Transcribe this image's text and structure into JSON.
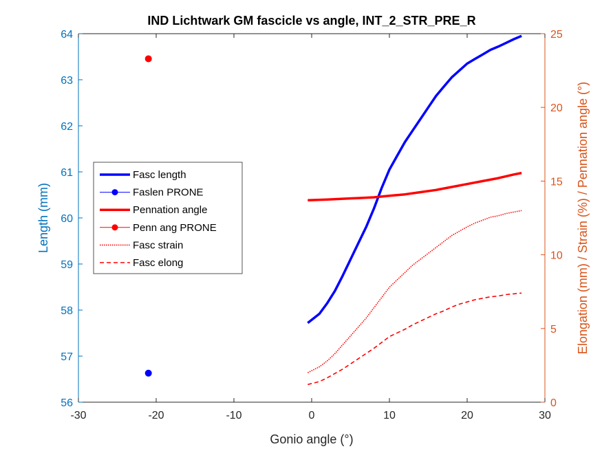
{
  "chart_data": {
    "type": "line",
    "title": "IND Lichtwark GM fascicle vs angle, INT_2_STR_PRE_R",
    "xlabel": "Gonio angle (°)",
    "ylabel_left": "Length (mm)",
    "ylabel_right": "Elongation (mm) / Strain (%) / Pennation angle (°)",
    "xlim": [
      -30,
      30
    ],
    "ylim_left": [
      56,
      64
    ],
    "ylim_right": [
      0,
      25
    ],
    "x_ticks": [
      -30,
      -20,
      -10,
      0,
      10,
      20,
      30
    ],
    "y_left_ticks": [
      56,
      57,
      58,
      59,
      60,
      61,
      62,
      63,
      64
    ],
    "y_right_ticks": [
      0,
      5,
      10,
      15,
      20,
      25
    ],
    "colors": {
      "left_axis": "#0072BD",
      "right_axis": "#D95319",
      "blue": "#0000FF",
      "red": "#FF0000"
    },
    "legend_position": "left-center",
    "series": [
      {
        "name": "Fasc length",
        "axis": "left",
        "style": "solid-thick",
        "color": "#0000FF",
        "x": [
          -0.5,
          1,
          2,
          3,
          4,
          5,
          6,
          7,
          8,
          9,
          10,
          11,
          12,
          13,
          14,
          15,
          16,
          17,
          18,
          19,
          20,
          21,
          22,
          23,
          24,
          25,
          26,
          27
        ],
        "y": [
          57.72,
          57.92,
          58.15,
          58.42,
          58.75,
          59.1,
          59.45,
          59.8,
          60.2,
          60.65,
          61.05,
          61.35,
          61.65,
          61.9,
          62.15,
          62.4,
          62.65,
          62.85,
          63.05,
          63.2,
          63.35,
          63.45,
          63.55,
          63.65,
          63.72,
          63.8,
          63.88,
          63.95
        ]
      },
      {
        "name": "Faslen PRONE",
        "axis": "left",
        "style": "marker",
        "color": "#0000FF",
        "x": [
          -21
        ],
        "y": [
          56.63
        ]
      },
      {
        "name": "Pennation angle",
        "axis": "right",
        "style": "solid-thick",
        "color": "#FF0000",
        "x": [
          -0.5,
          2,
          4,
          6,
          8,
          10,
          12,
          14,
          16,
          18,
          20,
          22,
          24,
          26,
          27
        ],
        "y": [
          13.7,
          13.75,
          13.8,
          13.85,
          13.9,
          14.0,
          14.1,
          14.25,
          14.4,
          14.6,
          14.8,
          15.0,
          15.2,
          15.45,
          15.55
        ]
      },
      {
        "name": "Penn ang PRONE",
        "axis": "right",
        "style": "marker",
        "color": "#FF0000",
        "x": [
          -21
        ],
        "y": [
          23.3
        ]
      },
      {
        "name": "Fasc strain",
        "axis": "right",
        "style": "dotted",
        "color": "#FF0000",
        "x": [
          -0.5,
          1,
          2,
          3,
          4,
          5,
          6,
          7,
          8,
          9,
          10,
          11,
          12,
          13,
          14,
          15,
          16,
          17,
          18,
          19,
          20,
          21,
          22,
          23,
          24,
          25,
          26,
          27
        ],
        "y": [
          2.0,
          2.4,
          2.8,
          3.3,
          3.9,
          4.5,
          5.1,
          5.7,
          6.4,
          7.1,
          7.8,
          8.3,
          8.8,
          9.3,
          9.7,
          10.1,
          10.5,
          10.9,
          11.3,
          11.6,
          11.9,
          12.15,
          12.35,
          12.55,
          12.65,
          12.8,
          12.9,
          13.0
        ]
      },
      {
        "name": "Fasc elong",
        "axis": "right",
        "style": "dashed",
        "color": "#FF0000",
        "x": [
          -0.5,
          1,
          2,
          3,
          4,
          5,
          6,
          7,
          8,
          9,
          10,
          11,
          12,
          13,
          14,
          15,
          16,
          17,
          18,
          19,
          20,
          21,
          22,
          23,
          24,
          25,
          26,
          27
        ],
        "y": [
          1.2,
          1.4,
          1.65,
          1.95,
          2.25,
          2.6,
          2.95,
          3.3,
          3.65,
          4.05,
          4.45,
          4.7,
          4.95,
          5.25,
          5.5,
          5.75,
          6.0,
          6.2,
          6.45,
          6.65,
          6.8,
          6.95,
          7.05,
          7.15,
          7.2,
          7.3,
          7.35,
          7.4
        ]
      }
    ]
  }
}
